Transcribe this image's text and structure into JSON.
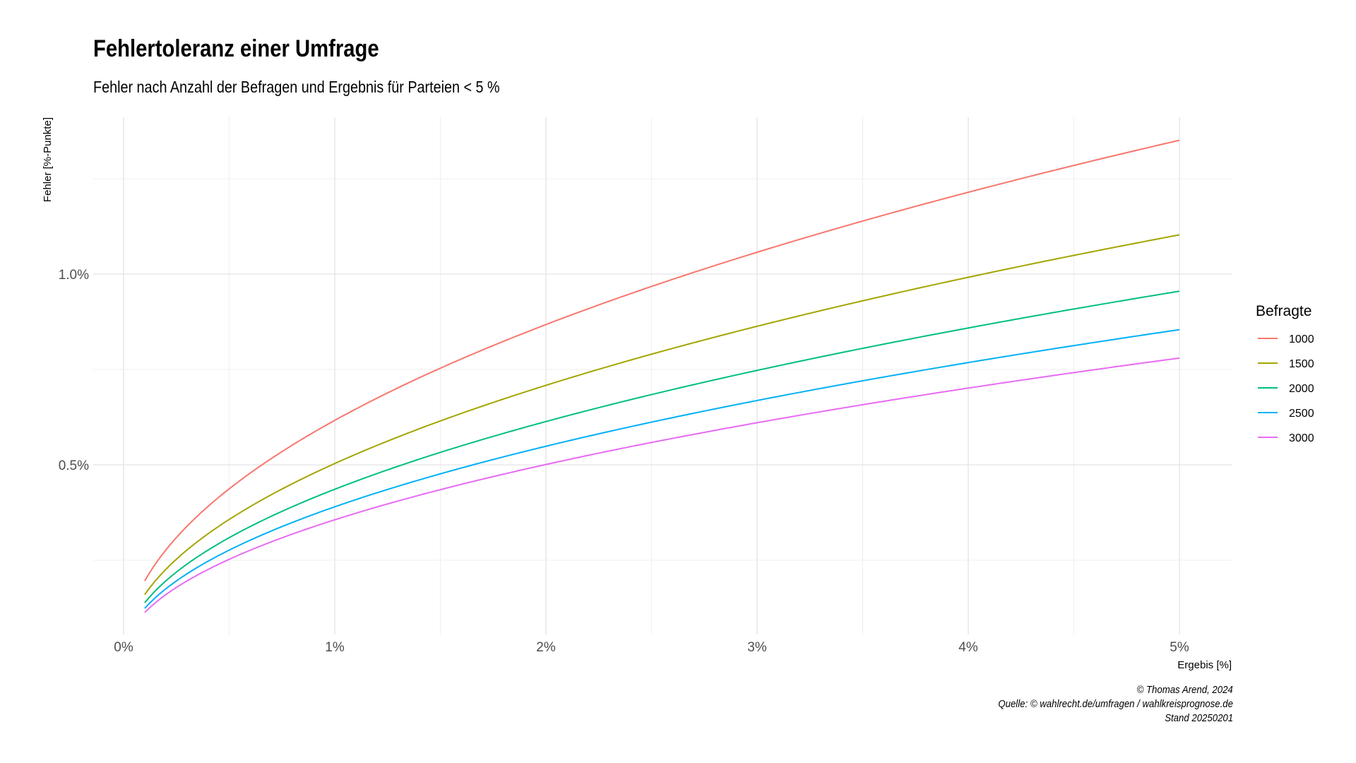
{
  "chart_data": {
    "type": "line",
    "title": "Fehlertoleranz einer Umfrage",
    "subtitle": "Fehler nach Anzahl der Befragen und Ergebnis für Parteien < 5 %",
    "xlabel": "Ergebis [%]",
    "ylabel": "Fehler [%-Punkte]",
    "xlim": [
      0,
      5.2
    ],
    "ylim": [
      0.1,
      1.46
    ],
    "x_ticks": [
      0,
      1,
      2,
      3,
      4,
      5
    ],
    "x_tick_labels": [
      "0%",
      "1%",
      "2%",
      "3%",
      "4%",
      "5%"
    ],
    "y_ticks": [
      0.5,
      1.0
    ],
    "y_tick_labels": [
      "0.5%",
      "1.0%"
    ],
    "grid": true,
    "legend": {
      "title": "Befragte",
      "position": "right"
    },
    "x_range": [
      0.1,
      5.0
    ],
    "series": [
      {
        "name": "1000",
        "color": "#F8766D",
        "n": 1000
      },
      {
        "name": "1500",
        "color": "#A3A500",
        "n": 1500
      },
      {
        "name": "2000",
        "color": "#00BF7D",
        "n": 2000
      },
      {
        "name": "2500",
        "color": "#00B0F6",
        "n": 2500
      },
      {
        "name": "3000",
        "color": "#E76BF3",
        "n": 3000
      }
    ]
  },
  "caption": {
    "line1": "© Thomas Arend, 2024",
    "line2": "Quelle: © wahlrecht.de/umfragen / wahlkreisprognose.de",
    "line3": "Stand 20250201"
  }
}
